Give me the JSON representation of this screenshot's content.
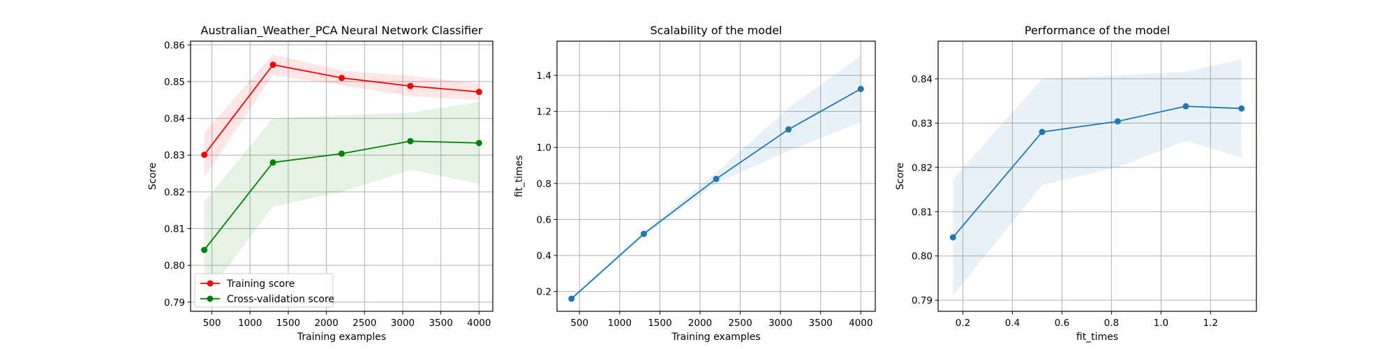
{
  "chart_data": [
    {
      "type": "line",
      "title": "Australian_Weather_PCA Neural Network Classifier",
      "xlabel": "Training examples",
      "ylabel": "Score",
      "xlim": [
        220,
        4180
      ],
      "ylim": [
        0.7875,
        0.861
      ],
      "xticks": [
        500,
        1000,
        1500,
        2000,
        2500,
        3000,
        3500,
        4000
      ],
      "yticks": [
        0.79,
        0.8,
        0.81,
        0.82,
        0.83,
        0.84,
        0.85,
        0.86
      ],
      "ytick_decimals": 2,
      "grid": true,
      "legend": "lower-left",
      "series": [
        {
          "name": "Training score",
          "color": "#ff0000",
          "x": [
            400,
            1300,
            2200,
            3100,
            4000
          ],
          "y": [
            0.8301,
            0.8546,
            0.851,
            0.8488,
            0.8472
          ],
          "band_low": [
            0.824,
            0.8518,
            0.849,
            0.846,
            0.845
          ],
          "band_high": [
            0.8362,
            0.8574,
            0.853,
            0.8516,
            0.8494
          ]
        },
        {
          "name": "Cross-validation score",
          "color": "#008000",
          "x": [
            400,
            1300,
            2200,
            3100,
            4000
          ],
          "y": [
            0.8042,
            0.828,
            0.8304,
            0.8338,
            0.8333
          ],
          "band_low": [
            0.791,
            0.816,
            0.82,
            0.826,
            0.8222
          ],
          "band_high": [
            0.8174,
            0.84,
            0.8408,
            0.8416,
            0.8444
          ]
        }
      ]
    },
    {
      "type": "line",
      "title": "Scalability of the model",
      "xlabel": "Training examples",
      "ylabel": "fit_times",
      "xlim": [
        220,
        4180
      ],
      "ylim": [
        0.09,
        1.59
      ],
      "xticks": [
        500,
        1000,
        1500,
        2000,
        2500,
        3000,
        3500,
        4000
      ],
      "yticks": [
        0.2,
        0.4,
        0.6,
        0.8,
        1.0,
        1.2,
        1.4
      ],
      "ytick_decimals": 1,
      "grid": true,
      "series": [
        {
          "color": "#1f77b4",
          "x": [
            400,
            1300,
            2200,
            3100,
            4000
          ],
          "y": [
            0.16,
            0.52,
            0.825,
            1.1,
            1.325
          ],
          "band_low": [
            0.155,
            0.505,
            0.8,
            0.98,
            1.14
          ],
          "band_high": [
            0.165,
            0.535,
            0.86,
            1.22,
            1.51
          ]
        }
      ]
    },
    {
      "type": "line",
      "title": "Performance of the model",
      "xlabel": "fit_times",
      "ylabel": "Score",
      "xlim": [
        0.1,
        1.385
      ],
      "ylim": [
        0.7875,
        0.8485
      ],
      "xticks": [
        0.2,
        0.4,
        0.6,
        0.8,
        1.0,
        1.2
      ],
      "xtick_decimals": 1,
      "yticks": [
        0.79,
        0.8,
        0.81,
        0.82,
        0.83,
        0.84
      ],
      "ytick_decimals": 2,
      "grid": true,
      "series": [
        {
          "color": "#1f77b4",
          "x": [
            0.16,
            0.52,
            0.825,
            1.1,
            1.325
          ],
          "y": [
            0.8042,
            0.828,
            0.8304,
            0.8338,
            0.8333
          ],
          "band_low": [
            0.791,
            0.816,
            0.82,
            0.826,
            0.8222
          ],
          "band_high": [
            0.8174,
            0.84,
            0.8408,
            0.8416,
            0.8444
          ]
        }
      ]
    }
  ]
}
